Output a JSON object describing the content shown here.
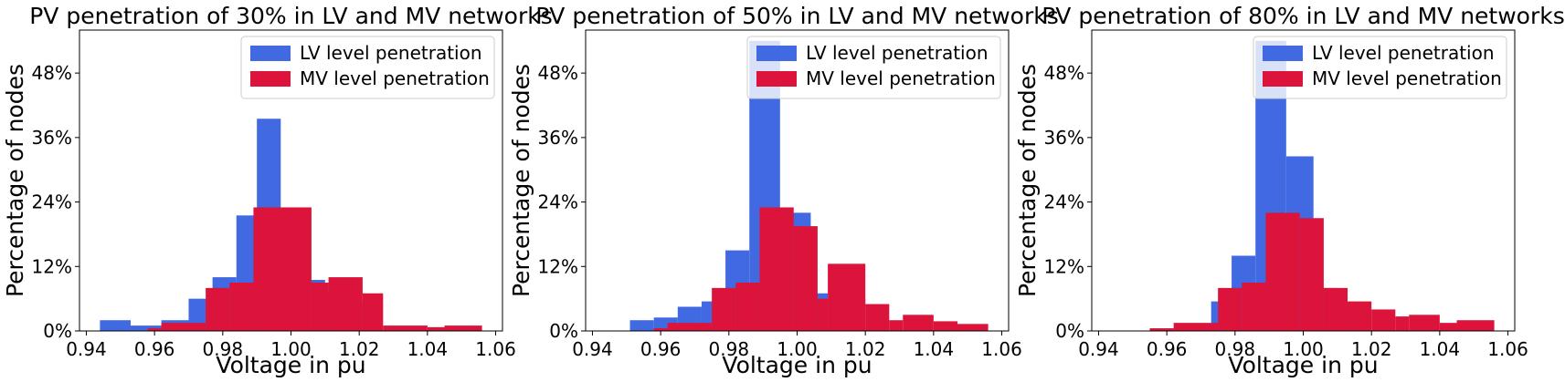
{
  "chart_data": [
    {
      "type": "bar",
      "title": "PV penetration of 30% in LV and MV networks",
      "xlabel": "Voltage in pu",
      "ylabel": "Percentage of nodes",
      "xlim": [
        0.938,
        1.062
      ],
      "ylim": [
        0,
        56
      ],
      "xticks": [
        0.94,
        0.96,
        0.98,
        1.0,
        1.02,
        1.04,
        1.06
      ],
      "xtick_labels": [
        "0.94",
        "0.96",
        "0.98",
        "1.00",
        "1.02",
        "1.04",
        "1.06"
      ],
      "yticks": [
        0,
        12,
        24,
        36,
        48
      ],
      "ytick_labels": [
        "0%",
        "12%",
        "24%",
        "36%",
        "48%"
      ],
      "legend_position": "top-right",
      "series": [
        {
          "name": "LV level penetration",
          "color": "#4169e1",
          "bins": [
            {
              "x0": 0.944,
              "x1": 0.953,
              "value": 2
            },
            {
              "x0": 0.953,
              "x1": 0.962,
              "value": 1
            },
            {
              "x0": 0.962,
              "x1": 0.97,
              "value": 2
            },
            {
              "x0": 0.97,
              "x1": 0.977,
              "value": 6
            },
            {
              "x0": 0.977,
              "x1": 0.984,
              "value": 10
            },
            {
              "x0": 0.984,
              "x1": 0.99,
              "value": 21.5
            },
            {
              "x0": 0.99,
              "x1": 0.997,
              "value": 39.5
            },
            {
              "x0": 0.997,
              "x1": 1.004,
              "value": 20
            },
            {
              "x0": 1.004,
              "x1": 1.01,
              "value": 9.5
            },
            {
              "x0": 1.01,
              "x1": 1.017,
              "value": 7.5
            },
            {
              "x0": 1.017,
              "x1": 1.024,
              "value": 5
            }
          ]
        },
        {
          "name": "MV level penetration",
          "color": "#dc143c",
          "bins": [
            {
              "x0": 0.958,
              "x1": 0.962,
              "value": 0.5
            },
            {
              "x0": 0.962,
              "x1": 0.975,
              "value": 1.5
            },
            {
              "x0": 0.975,
              "x1": 0.982,
              "value": 8
            },
            {
              "x0": 0.982,
              "x1": 0.989,
              "value": 9
            },
            {
              "x0": 0.989,
              "x1": 1.006,
              "value": 23
            },
            {
              "x0": 1.006,
              "x1": 1.011,
              "value": 9
            },
            {
              "x0": 1.011,
              "x1": 1.021,
              "value": 10
            },
            {
              "x0": 1.021,
              "x1": 1.027,
              "value": 7
            },
            {
              "x0": 1.027,
              "x1": 1.04,
              "value": 1
            },
            {
              "x0": 1.04,
              "x1": 1.045,
              "value": 0.7
            },
            {
              "x0": 1.045,
              "x1": 1.056,
              "value": 1
            }
          ]
        }
      ]
    },
    {
      "type": "bar",
      "title": "PV penetration of 50% in LV and MV networks",
      "xlabel": "Voltage in pu",
      "ylabel": "Percentage of nodes",
      "xlim": [
        0.938,
        1.062
      ],
      "ylim": [
        0,
        56
      ],
      "xticks": [
        0.94,
        0.96,
        0.98,
        1.0,
        1.02,
        1.04,
        1.06
      ],
      "xtick_labels": [
        "0.94",
        "0.96",
        "0.98",
        "1.00",
        "1.02",
        "1.04",
        "1.06"
      ],
      "yticks": [
        0,
        12,
        24,
        36,
        48
      ],
      "ytick_labels": [
        "0%",
        "12%",
        "24%",
        "36%",
        "48%"
      ],
      "legend_position": "top-right",
      "series": [
        {
          "name": "LV level penetration",
          "color": "#4169e1",
          "bins": [
            {
              "x0": 0.951,
              "x1": 0.958,
              "value": 2
            },
            {
              "x0": 0.958,
              "x1": 0.965,
              "value": 2.5
            },
            {
              "x0": 0.965,
              "x1": 0.972,
              "value": 4.5
            },
            {
              "x0": 0.972,
              "x1": 0.979,
              "value": 5.5
            },
            {
              "x0": 0.979,
              "x1": 0.986,
              "value": 15
            },
            {
              "x0": 0.986,
              "x1": 0.995,
              "value": 54
            },
            {
              "x0": 0.995,
              "x1": 1.004,
              "value": 22
            },
            {
              "x0": 1.004,
              "x1": 1.009,
              "value": 7
            },
            {
              "x0": 1.009,
              "x1": 1.02,
              "value": 6
            }
          ]
        },
        {
          "name": "MV level penetration",
          "color": "#dc143c",
          "bins": [
            {
              "x0": 0.958,
              "x1": 0.962,
              "value": 0.5
            },
            {
              "x0": 0.962,
              "x1": 0.975,
              "value": 1.5
            },
            {
              "x0": 0.975,
              "x1": 0.982,
              "value": 8
            },
            {
              "x0": 0.982,
              "x1": 0.989,
              "value": 9
            },
            {
              "x0": 0.989,
              "x1": 0.999,
              "value": 23
            },
            {
              "x0": 0.999,
              "x1": 1.006,
              "value": 19.5
            },
            {
              "x0": 1.006,
              "x1": 1.009,
              "value": 6
            },
            {
              "x0": 1.009,
              "x1": 1.02,
              "value": 12.5
            },
            {
              "x0": 1.02,
              "x1": 1.027,
              "value": 5
            },
            {
              "x0": 1.027,
              "x1": 1.031,
              "value": 2
            },
            {
              "x0": 1.031,
              "x1": 1.04,
              "value": 3
            },
            {
              "x0": 1.04,
              "x1": 1.047,
              "value": 1.8
            },
            {
              "x0": 1.047,
              "x1": 1.056,
              "value": 1.3
            }
          ]
        }
      ]
    },
    {
      "type": "bar",
      "title": "PV penetration of 80% in LV and MV networks",
      "xlabel": "Voltage in pu",
      "ylabel": "Percentage of nodes",
      "xlim": [
        0.938,
        1.062
      ],
      "ylim": [
        0,
        56
      ],
      "xticks": [
        0.94,
        0.96,
        0.98,
        1.0,
        1.02,
        1.04,
        1.06
      ],
      "xtick_labels": [
        "0.94",
        "0.96",
        "0.98",
        "1.00",
        "1.02",
        "1.04",
        "1.06"
      ],
      "yticks": [
        0,
        12,
        24,
        36,
        48
      ],
      "ytick_labels": [
        "0%",
        "12%",
        "24%",
        "36%",
        "48%"
      ],
      "legend_position": "top-right",
      "series": [
        {
          "name": "LV level penetration",
          "color": "#4169e1",
          "bins": [
            {
              "x0": 0.973,
              "x1": 0.979,
              "value": 5.5
            },
            {
              "x0": 0.979,
              "x1": 0.986,
              "value": 14
            },
            {
              "x0": 0.986,
              "x1": 0.995,
              "value": 54
            },
            {
              "x0": 0.995,
              "x1": 1.003,
              "value": 32.5
            },
            {
              "x0": 1.003,
              "x1": 1.01,
              "value": 8
            },
            {
              "x0": 1.01,
              "x1": 1.017,
              "value": 5
            }
          ]
        },
        {
          "name": "MV level penetration",
          "color": "#dc143c",
          "bins": [
            {
              "x0": 0.955,
              "x1": 0.962,
              "value": 0.5
            },
            {
              "x0": 0.962,
              "x1": 0.975,
              "value": 1.5
            },
            {
              "x0": 0.975,
              "x1": 0.982,
              "value": 8
            },
            {
              "x0": 0.982,
              "x1": 0.989,
              "value": 9
            },
            {
              "x0": 0.989,
              "x1": 0.999,
              "value": 22
            },
            {
              "x0": 0.999,
              "x1": 1.006,
              "value": 21
            },
            {
              "x0": 1.006,
              "x1": 1.013,
              "value": 8
            },
            {
              "x0": 1.013,
              "x1": 1.02,
              "value": 5.5
            },
            {
              "x0": 1.02,
              "x1": 1.027,
              "value": 4
            },
            {
              "x0": 1.027,
              "x1": 1.031,
              "value": 2.7
            },
            {
              "x0": 1.031,
              "x1": 1.04,
              "value": 3
            },
            {
              "x0": 1.04,
              "x1": 1.045,
              "value": 1.5
            },
            {
              "x0": 1.045,
              "x1": 1.056,
              "value": 2
            }
          ]
        }
      ]
    }
  ]
}
